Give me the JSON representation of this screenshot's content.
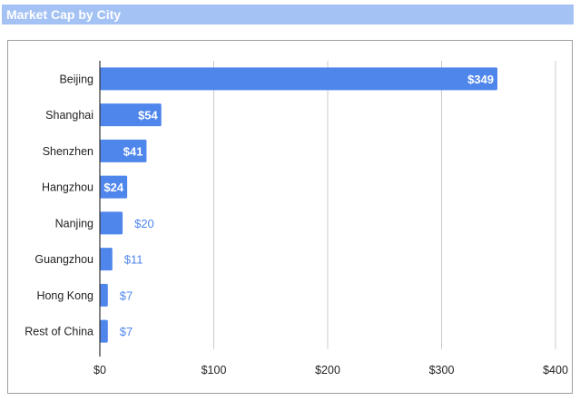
{
  "chart_data": {
    "type": "bar",
    "orientation": "horizontal",
    "title": "Market Cap by City",
    "xlabel": "",
    "ylabel": "",
    "categories": [
      "Beijing",
      "Shanghai",
      "Shenzhen",
      "Hangzhou",
      "Nanjing",
      "Guangzhou",
      "Hong Kong",
      "Rest of China"
    ],
    "values": [
      349,
      54,
      41,
      24,
      20,
      11,
      7,
      7
    ],
    "data_labels": [
      "$349",
      "$54",
      "$41",
      "$24",
      "$20",
      "$11",
      "$7",
      "$7"
    ],
    "xlim": [
      0,
      400
    ],
    "x_ticks": [
      0,
      100,
      200,
      300,
      400
    ],
    "x_tick_labels": [
      "$0",
      "$100",
      "$200",
      "$300",
      "$400"
    ],
    "grid": true,
    "legend": "none",
    "colors": {
      "bar": "#4f86ec",
      "label_inside": "#ffffff",
      "label_outside": "#4f86ec",
      "title_bar": "#a4c2f4",
      "gridline": "#cccccc",
      "axis": "#333333"
    }
  }
}
